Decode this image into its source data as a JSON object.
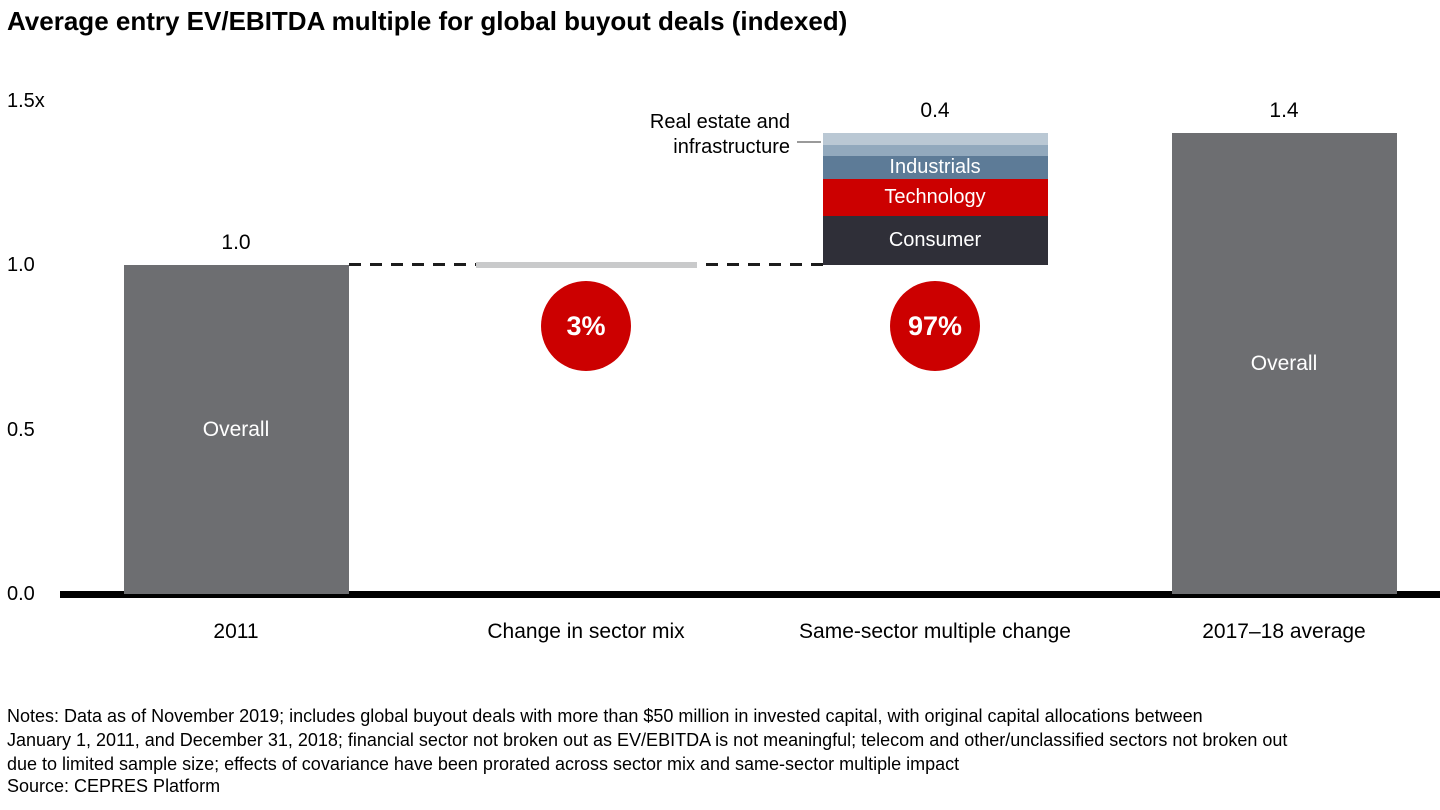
{
  "title": "Average entry EV/EBITDA multiple for global buyout deals (indexed)",
  "notes": "Notes: Data as of November 2019; includes global buyout deals with more than $50 million in invested capital, with original capital allocations between\nJanuary 1, 2011, and December 31, 2018; financial sector not broken out as EV/EBITDA is not meaningful; telecom and other/unclassified sectors not broken out\ndue to limited sample size; effects of covariance have been prorated across sector mix and same-sector multiple impact",
  "source": "Source: CEPRES Platform",
  "chart_data": {
    "type": "bar",
    "subtype": "waterfall with stacked contribution bar",
    "title": "Average entry EV/EBITDA multiple for global buyout deals (indexed)",
    "ylim": [
      0,
      1.5
    ],
    "yticks": [
      {
        "v": 0,
        "label": "0.0"
      },
      {
        "v": 0.5,
        "label": "0.5"
      },
      {
        "v": 1.0,
        "label": "1.0"
      },
      {
        "v": 1.5,
        "label": "1.5x"
      }
    ],
    "dashed_line_at": 1.0,
    "grid": false,
    "legend": "none",
    "categories": [
      "2011",
      "Change in sector mix",
      "Same-sector multiple change",
      "2017–18 average"
    ],
    "bars": [
      {
        "name": "2011",
        "kind": "total",
        "base": 0,
        "value": 1.0,
        "label": "1.0",
        "inner_label": "Overall",
        "color": "#6d6e71"
      },
      {
        "name": "Change in sector mix",
        "kind": "sliver",
        "value": 0.02,
        "color": "#c9cacb",
        "badge": {
          "text": "3%",
          "color": "#cc0000"
        }
      },
      {
        "name": "Same-sector multiple change",
        "kind": "stacked",
        "base": 1.0,
        "label": "0.4",
        "badge": {
          "text": "97%",
          "color": "#cc0000"
        },
        "segments": [
          {
            "name": "Consumer",
            "label": "Consumer",
            "value": 0.15,
            "color": "#2f2f38"
          },
          {
            "name": "Technology",
            "label": "Technology",
            "value": 0.11,
            "color": "#cc0000"
          },
          {
            "name": "Industrials",
            "label": "Industrials",
            "value": 0.07,
            "color": "#5d7b97"
          },
          {
            "name": "Real estate and infrastructure",
            "label": "",
            "value": 0.035,
            "color": "#92a9bd"
          },
          {
            "name": "Real estate and infrastructure",
            "label": "",
            "value": 0.035,
            "color": "#bac8d4"
          }
        ]
      },
      {
        "name": "2017–18 average",
        "kind": "total",
        "base": 0,
        "value": 1.4,
        "label": "1.4",
        "inner_label": "Overall",
        "color": "#6d6e71"
      }
    ],
    "callout": {
      "label": "Real estate and\ninfrastructure"
    }
  }
}
